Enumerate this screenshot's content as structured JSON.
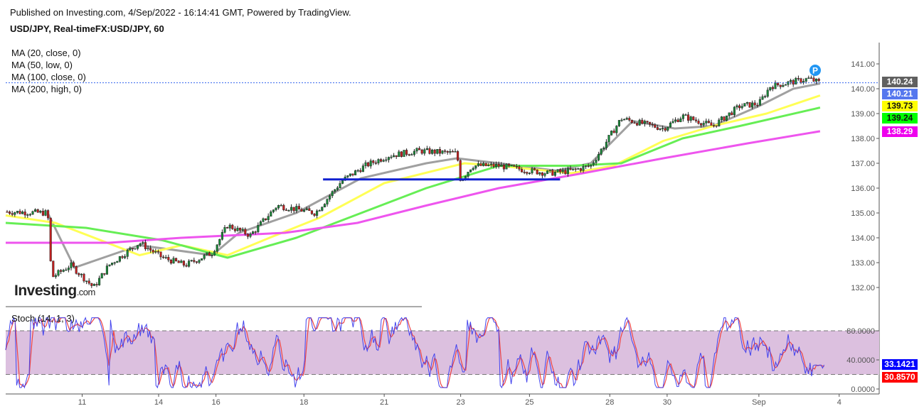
{
  "header": {
    "published": "Published on Investing.com, 4/Sep/2022 - 16:14:41 GMT, Powered by TradingView.",
    "symbol": "USD/JPY, Real-timeFX:USD/JPY, 60"
  },
  "legend": [
    "MA (20, close, 0)",
    "MA (50, low, 0)",
    "MA (100, close, 0)",
    "MA (200, high, 0)"
  ],
  "logo": {
    "text": "Investing",
    "suffix": ".com"
  },
  "marker": "P",
  "stoch": {
    "label": "Stoch (14, 1, 3)",
    "k": "33.1421",
    "d": "30.8570",
    "ticks": [
      "80.0000",
      "40.0000",
      "0.0000"
    ]
  },
  "price_tags": [
    {
      "value": "140.24",
      "bg": "#606060",
      "fg": "#ffffff"
    },
    {
      "value": "140.21",
      "bg": "#5577ee",
      "fg": "#ffffff"
    },
    {
      "value": "139.73",
      "bg": "#ffff00",
      "fg": "#111111"
    },
    {
      "value": "139.24",
      "bg": "#00ff00",
      "fg": "#111111"
    },
    {
      "value": "138.29",
      "bg": "#ee00ee",
      "fg": "#ffffff"
    }
  ],
  "chart_data": {
    "type": "candlestick",
    "title": "USD/JPY, 60",
    "ylim": [
      131.7,
      141.6
    ],
    "y_ticks": [
      "141.00",
      "140.00",
      "139.00",
      "138.00",
      "137.00",
      "136.00",
      "135.00",
      "134.00",
      "133.00",
      "132.00"
    ],
    "x_ticks": [
      "11",
      "14",
      "16",
      "18",
      "21",
      "23",
      "25",
      "28",
      "30",
      "Sep",
      "4"
    ],
    "x_tick_pos": [
      1.0,
      2.0,
      2.75,
      3.9,
      4.95,
      5.95,
      6.85,
      7.9,
      8.65,
      9.85,
      10.9
    ],
    "price_path": [
      [
        0,
        135.05
      ],
      [
        0.55,
        135.0
      ],
      [
        0.6,
        132.4
      ],
      [
        0.85,
        132.9
      ],
      [
        1.15,
        132.0
      ],
      [
        1.35,
        132.9
      ],
      [
        1.75,
        133.8
      ],
      [
        2.05,
        133.2
      ],
      [
        2.35,
        132.9
      ],
      [
        2.7,
        133.4
      ],
      [
        2.9,
        134.5
      ],
      [
        3.2,
        134.1
      ],
      [
        3.55,
        135.3
      ],
      [
        4.05,
        135.0
      ],
      [
        4.4,
        136.3
      ],
      [
        4.7,
        136.9
      ],
      [
        5.0,
        137.3
      ],
      [
        5.4,
        137.5
      ],
      [
        5.9,
        137.4
      ],
      [
        5.95,
        136.3
      ],
      [
        6.1,
        136.9
      ],
      [
        6.45,
        136.9
      ],
      [
        6.85,
        136.7
      ],
      [
        7.1,
        136.6
      ],
      [
        7.4,
        136.7
      ],
      [
        7.65,
        136.9
      ],
      [
        7.8,
        137.6
      ],
      [
        8.05,
        138.8
      ],
      [
        8.6,
        138.4
      ],
      [
        8.85,
        138.9
      ],
      [
        9.25,
        138.5
      ],
      [
        9.6,
        139.3
      ],
      [
        9.85,
        139.4
      ],
      [
        10.0,
        140.1
      ],
      [
        10.5,
        140.4
      ],
      [
        10.65,
        140.24
      ]
    ],
    "series": [
      {
        "name": "MA (20, close, 0)",
        "color": "#a0a0a0",
        "points": [
          [
            0.55,
            135.0
          ],
          [
            0.9,
            132.8
          ],
          [
            1.75,
            133.7
          ],
          [
            2.7,
            133.3
          ],
          [
            3.05,
            134.2
          ],
          [
            3.8,
            135.0
          ],
          [
            4.65,
            136.4
          ],
          [
            5.5,
            137.0
          ],
          [
            5.9,
            137.2
          ],
          [
            6.45,
            137.0
          ],
          [
            7.2,
            136.7
          ],
          [
            7.65,
            137.0
          ],
          [
            8.2,
            138.7
          ],
          [
            8.75,
            138.4
          ],
          [
            9.25,
            138.5
          ],
          [
            9.85,
            139.3
          ],
          [
            10.3,
            140.0
          ],
          [
            10.65,
            140.21
          ]
        ]
      },
      {
        "name": "MA (50, low, 0)",
        "color": "#ffff55",
        "points": [
          [
            0,
            134.9
          ],
          [
            0.65,
            134.6
          ],
          [
            1.75,
            133.3
          ],
          [
            2.3,
            133.7
          ],
          [
            2.9,
            133.3
          ],
          [
            3.45,
            134.0
          ],
          [
            4.1,
            134.8
          ],
          [
            4.95,
            136.2
          ],
          [
            6.0,
            137.0
          ],
          [
            6.45,
            136.9
          ],
          [
            7.4,
            136.6
          ],
          [
            7.95,
            136.9
          ],
          [
            8.6,
            137.9
          ],
          [
            9.25,
            138.5
          ],
          [
            9.95,
            139.0
          ],
          [
            10.65,
            139.73
          ]
        ]
      },
      {
        "name": "MA (100, close, 0)",
        "color": "#66ee55",
        "points": [
          [
            0,
            134.6
          ],
          [
            1.05,
            134.4
          ],
          [
            2.05,
            133.9
          ],
          [
            2.9,
            133.2
          ],
          [
            3.8,
            134.0
          ],
          [
            4.65,
            135.0
          ],
          [
            5.5,
            136.0
          ],
          [
            6.45,
            136.9
          ],
          [
            7.4,
            136.9
          ],
          [
            8.05,
            137.0
          ],
          [
            8.85,
            138.0
          ],
          [
            9.6,
            138.5
          ],
          [
            10.65,
            139.24
          ]
        ]
      },
      {
        "name": "MA (200, high, 0)",
        "color": "#ee55ee",
        "points": [
          [
            0,
            133.8
          ],
          [
            1.35,
            133.8
          ],
          [
            2.3,
            134.0
          ],
          [
            3.65,
            134.2
          ],
          [
            4.6,
            134.6
          ],
          [
            5.5,
            135.3
          ],
          [
            6.45,
            136.0
          ],
          [
            7.55,
            136.6
          ],
          [
            8.6,
            137.2
          ],
          [
            9.7,
            137.8
          ],
          [
            10.65,
            138.29
          ]
        ]
      }
    ],
    "support_line": {
      "price": 136.35,
      "from": 4.15,
      "to": 7.25
    },
    "last_price": 140.24
  }
}
